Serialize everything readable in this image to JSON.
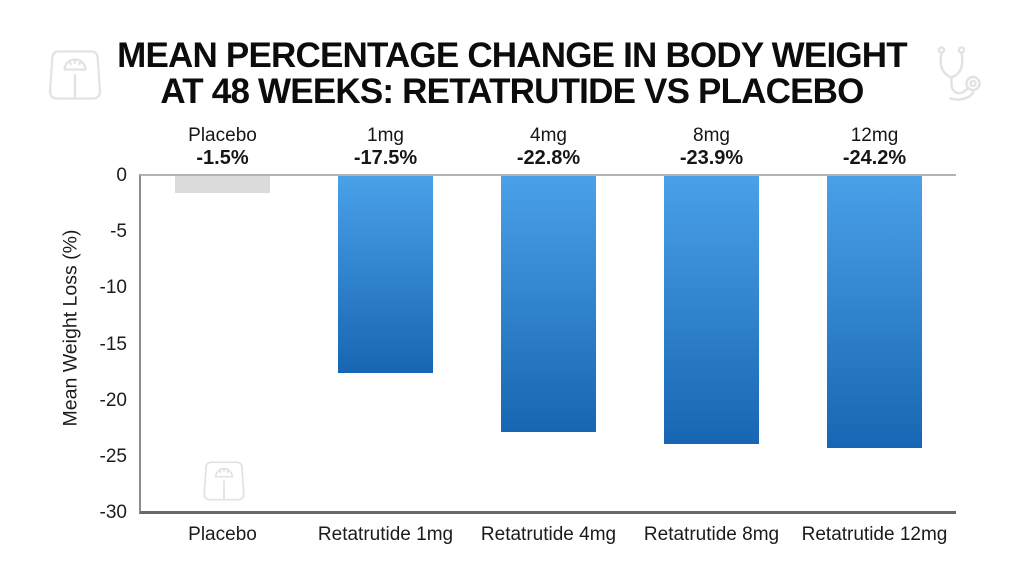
{
  "page": {
    "background": "#ffffff"
  },
  "title": {
    "line1": "MEAN PERCENTAGE CHANGE IN BODY WEIGHT",
    "line2": "AT 48 WEEKS: RETATRUTIDE VS PLACEBO"
  },
  "icons": {
    "top_left": "weight-scale-icon",
    "top_right": "stethoscope-icon",
    "bottom_plot": "weight-scale-icon",
    "color": "#e2e2e2"
  },
  "chart_data": {
    "type": "bar",
    "title": "MEAN PERCENTAGE CHANGE IN BODY WEIGHT AT 48 WEEKS: RETATRUTIDE VS PLACEBO",
    "categories": [
      "Placebo",
      "Retatrutide 1mg",
      "Retatrutide 4mg",
      "Retatrutide 8mg",
      "Retatrutide 12mg"
    ],
    "values": [
      -1.5,
      -17.5,
      -22.8,
      -23.9,
      -24.2
    ],
    "bar_top_labels": [
      {
        "dose": "Placebo",
        "value": "-1.5%"
      },
      {
        "dose": "1mg",
        "value": "-17.5%"
      },
      {
        "dose": "4mg",
        "value": "-22.8%"
      },
      {
        "dose": "8mg",
        "value": "-23.9%"
      },
      {
        "dose": "12mg",
        "value": "-24.2%"
      }
    ],
    "xlabel": "",
    "ylabel": "Mean Weight Loss (%)",
    "ylim": [
      -30,
      0
    ],
    "yticks": [
      0,
      -5,
      -10,
      -15,
      -20,
      -25,
      -30
    ],
    "grid": false,
    "legend": false,
    "colors": {
      "placebo_bar": "#dbdbdb",
      "bar_gradient_top": "#4aa1e8",
      "bar_gradient_bottom": "#1766b3"
    }
  }
}
